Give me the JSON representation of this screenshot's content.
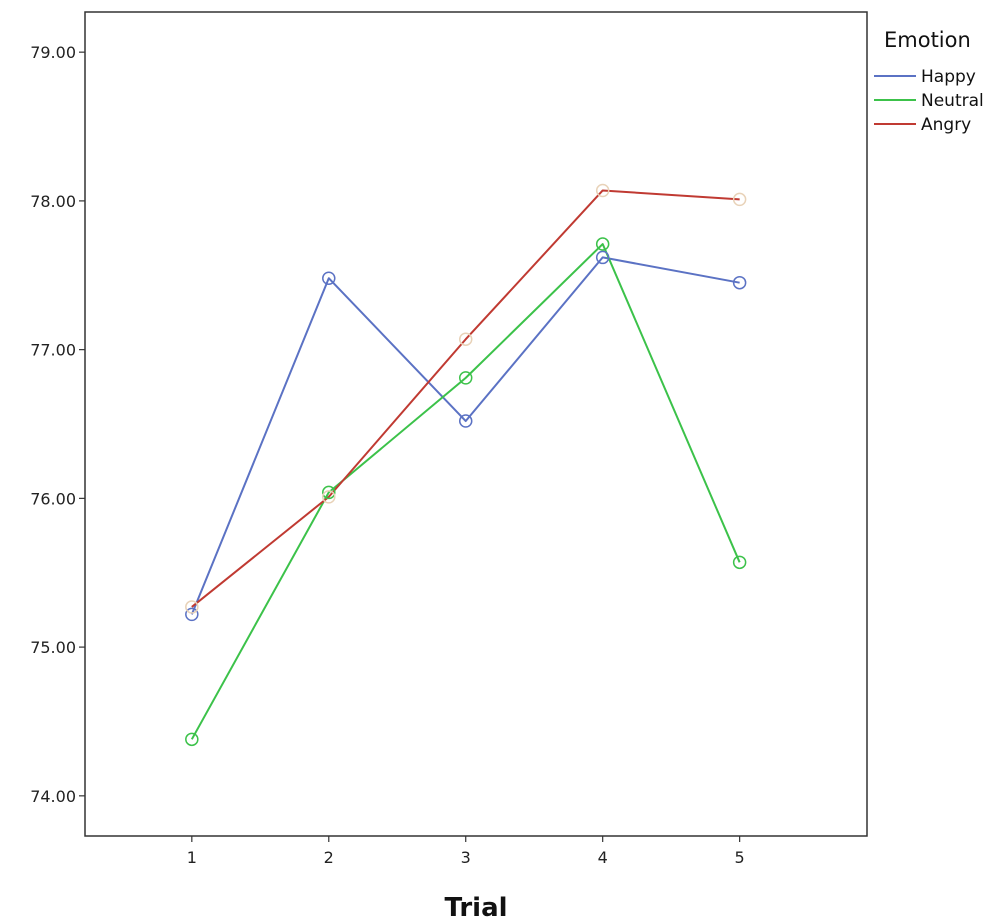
{
  "chart_data": {
    "type": "line",
    "title": "",
    "xlabel": "Trial",
    "ylabel": "",
    "x": [
      1,
      2,
      3,
      4,
      5
    ],
    "xlim": [
      0.22,
      5.93
    ],
    "ylim": [
      73.73,
      79.27
    ],
    "yticks": [
      74.0,
      75.0,
      76.0,
      77.0,
      78.0,
      79.0
    ],
    "ytick_labels": [
      "74.00",
      "75.00",
      "76.00",
      "77.00",
      "78.00",
      "79.00"
    ],
    "xtick_labels": [
      "1",
      "2",
      "3",
      "4",
      "5"
    ],
    "grid": false,
    "legend": {
      "title": "Emotion",
      "placement": "outside-top-right"
    },
    "series": [
      {
        "name": "Happy",
        "values": [
          75.22,
          77.48,
          76.52,
          77.62,
          77.45
        ],
        "color": "#5b72c4",
        "marker_color": "#5b72c4"
      },
      {
        "name": "Neutral",
        "values": [
          74.38,
          76.04,
          76.81,
          77.71,
          75.57
        ],
        "color": "#3cc24a",
        "marker_color": "#3cc24a"
      },
      {
        "name": "Angry",
        "values": [
          75.27,
          76.01,
          77.07,
          78.07,
          78.01
        ],
        "color": "#c03a32",
        "marker_color": "#e8d2b8"
      }
    ]
  }
}
